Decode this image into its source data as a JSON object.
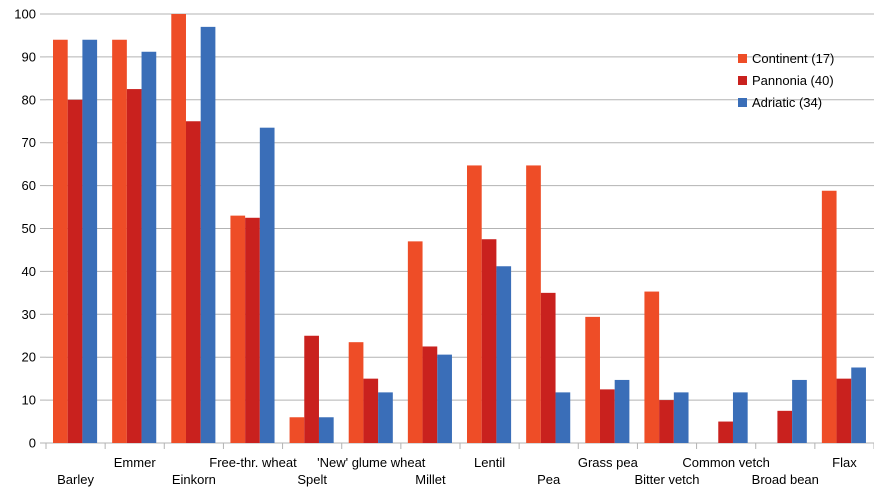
{
  "chart_data": {
    "type": "bar",
    "title": "",
    "xlabel": "",
    "ylabel": "",
    "ylim": [
      0,
      100
    ],
    "yticks": [
      0,
      10,
      20,
      30,
      40,
      50,
      60,
      70,
      80,
      90,
      100
    ],
    "grid": true,
    "legend_position": "top-right",
    "categories": [
      "Barley",
      "Emmer",
      "Einkorn",
      "Free-thr. wheat",
      "Spelt",
      "'New' glume wheat",
      "Millet",
      "Lentil",
      "Pea",
      "Grass pea",
      "Bitter vetch",
      "Common vetch",
      "Broad bean",
      "Flax"
    ],
    "series": [
      {
        "name": "Continent (17)",
        "color": "#ee4d27",
        "values": [
          94,
          94,
          100,
          53,
          6,
          23.5,
          47,
          64.7,
          64.7,
          29.4,
          35.3,
          0,
          0,
          58.8
        ]
      },
      {
        "name": "Pannonia (40)",
        "color": "#c9211e",
        "values": [
          80,
          82.5,
          75,
          52.5,
          25,
          15,
          22.5,
          47.5,
          35,
          12.5,
          10,
          5,
          7.5,
          15
        ]
      },
      {
        "name": "Adriatic (34)",
        "color": "#3a6eb8",
        "values": [
          94,
          91.2,
          97,
          73.5,
          6,
          11.8,
          20.6,
          41.2,
          11.8,
          14.7,
          11.8,
          11.8,
          14.7,
          17.6
        ]
      }
    ]
  }
}
